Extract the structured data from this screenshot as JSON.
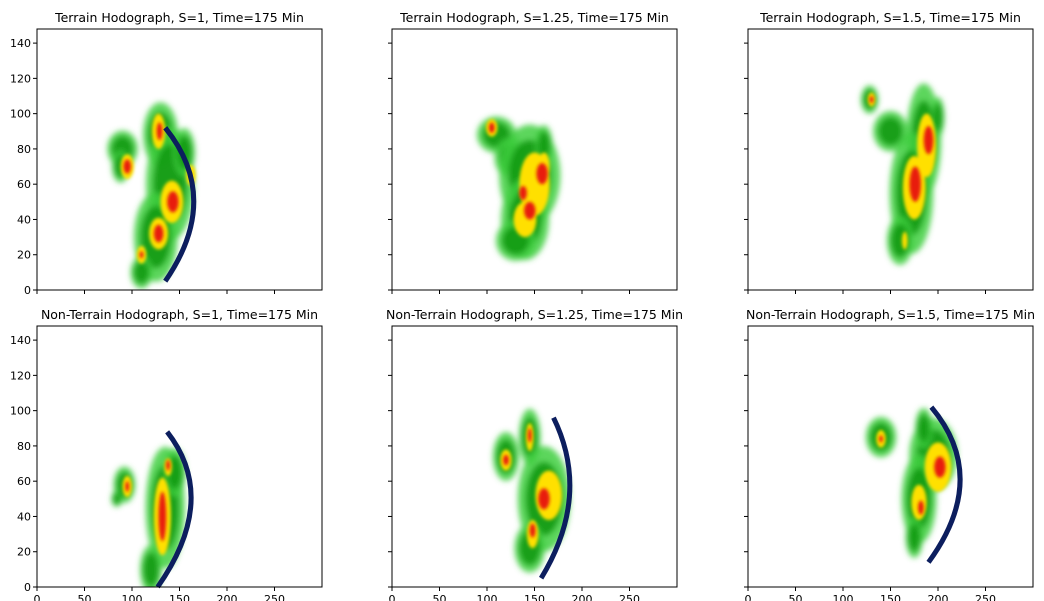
{
  "figure": {
    "shared_x_ticks": [
      "0",
      "50",
      "100",
      "150",
      "200",
      "250"
    ],
    "shared_y_ticks": [
      "0",
      "20",
      "40",
      "60",
      "80",
      "100",
      "120",
      "140"
    ]
  },
  "colors": {
    "reflectivity_light": "#3fcf3f",
    "reflectivity_mid": "#109a10",
    "reflectivity_high": "#ffe000",
    "reflectivity_core": "#e81c10",
    "outflow_arc": "#0c1e5e"
  },
  "chart_data": [
    {
      "type": "heatmap",
      "title": "Terrain Hodograph, S=1, Time=175 Min",
      "xlim": [
        0,
        300
      ],
      "ylim": [
        0,
        148
      ],
      "xticks": [
        0,
        50,
        100,
        150,
        200,
        250
      ],
      "yticks": [
        0,
        20,
        40,
        60,
        80,
        100,
        120,
        140
      ],
      "show_x_ticklabels": false,
      "show_y_ticklabels": true,
      "cells": [
        {
          "x": 90,
          "y": 80,
          "rx": 14,
          "ry": 9,
          "level": 1
        },
        {
          "x": 88,
          "y": 70,
          "rx": 8,
          "ry": 8,
          "level": 1
        },
        {
          "x": 130,
          "y": 88,
          "rx": 16,
          "ry": 16,
          "level": 1
        },
        {
          "x": 140,
          "y": 60,
          "rx": 22,
          "ry": 28,
          "level": 1
        },
        {
          "x": 125,
          "y": 30,
          "rx": 20,
          "ry": 22,
          "level": 1
        },
        {
          "x": 110,
          "y": 10,
          "rx": 10,
          "ry": 8,
          "level": 1
        },
        {
          "x": 155,
          "y": 78,
          "rx": 10,
          "ry": 12,
          "level": 1
        },
        {
          "x": 95,
          "y": 70,
          "rx": 7,
          "ry": 7,
          "level": 2
        },
        {
          "x": 128,
          "y": 90,
          "rx": 7,
          "ry": 10,
          "level": 2
        },
        {
          "x": 142,
          "y": 50,
          "rx": 12,
          "ry": 12,
          "level": 2
        },
        {
          "x": 128,
          "y": 32,
          "rx": 10,
          "ry": 9,
          "level": 2
        },
        {
          "x": 110,
          "y": 20,
          "rx": 5,
          "ry": 5,
          "level": 2
        },
        {
          "x": 162,
          "y": 65,
          "rx": 5,
          "ry": 6,
          "level": 2
        },
        {
          "x": 95,
          "y": 70,
          "rx": 4,
          "ry": 4,
          "level": 3
        },
        {
          "x": 129,
          "y": 90,
          "rx": 3,
          "ry": 5,
          "level": 3
        },
        {
          "x": 143,
          "y": 50,
          "rx": 6,
          "ry": 6,
          "level": 3
        },
        {
          "x": 128,
          "y": 32,
          "rx": 5,
          "ry": 5,
          "level": 3
        },
        {
          "x": 110,
          "y": 20,
          "rx": 2,
          "ry": 2,
          "level": 3
        }
      ],
      "arc": {
        "start": [
          135,
          92
        ],
        "control": [
          195,
          52
        ],
        "end": [
          135,
          5
        ]
      }
    },
    {
      "type": "heatmap",
      "title": "Terrain Hodograph, S=1.25, Time=175 Min",
      "xlim": [
        0,
        300
      ],
      "ylim": [
        0,
        148
      ],
      "xticks": [
        0,
        50,
        100,
        150,
        200,
        250
      ],
      "yticks": [
        0,
        20,
        40,
        60,
        80,
        100,
        120,
        140
      ],
      "show_x_ticklabels": false,
      "show_y_ticklabels": false,
      "cells": [
        {
          "x": 110,
          "y": 88,
          "rx": 18,
          "ry": 9,
          "level": 1
        },
        {
          "x": 125,
          "y": 75,
          "rx": 15,
          "ry": 10,
          "level": 1
        },
        {
          "x": 145,
          "y": 65,
          "rx": 28,
          "ry": 25,
          "level": 1
        },
        {
          "x": 140,
          "y": 40,
          "rx": 22,
          "ry": 20,
          "level": 1
        },
        {
          "x": 130,
          "y": 28,
          "rx": 18,
          "ry": 10,
          "level": 1
        },
        {
          "x": 160,
          "y": 82,
          "rx": 8,
          "ry": 10,
          "level": 1
        },
        {
          "x": 105,
          "y": 92,
          "rx": 6,
          "ry": 5,
          "level": 2
        },
        {
          "x": 150,
          "y": 60,
          "rx": 16,
          "ry": 18,
          "level": 2
        },
        {
          "x": 140,
          "y": 40,
          "rx": 12,
          "ry": 10,
          "level": 2
        },
        {
          "x": 160,
          "y": 70,
          "rx": 6,
          "ry": 8,
          "level": 2
        },
        {
          "x": 105,
          "y": 92,
          "rx": 3,
          "ry": 3,
          "level": 3
        },
        {
          "x": 158,
          "y": 66,
          "rx": 6,
          "ry": 6,
          "level": 3
        },
        {
          "x": 145,
          "y": 45,
          "rx": 6,
          "ry": 5,
          "level": 3
        },
        {
          "x": 138,
          "y": 55,
          "rx": 4,
          "ry": 4,
          "level": 3
        }
      ]
    },
    {
      "type": "heatmap",
      "title": "Terrain Hodograph, S=1.5, Time=175 Min",
      "xlim": [
        0,
        300
      ],
      "ylim": [
        0,
        148
      ],
      "xticks": [
        0,
        50,
        100,
        150,
        200,
        250
      ],
      "yticks": [
        0,
        20,
        40,
        60,
        80,
        100,
        120,
        140
      ],
      "show_x_ticklabels": false,
      "show_y_ticklabels": false,
      "cells": [
        {
          "x": 128,
          "y": 108,
          "rx": 8,
          "ry": 7,
          "level": 1
        },
        {
          "x": 150,
          "y": 90,
          "rx": 16,
          "ry": 10,
          "level": 1
        },
        {
          "x": 185,
          "y": 85,
          "rx": 16,
          "ry": 28,
          "level": 1
        },
        {
          "x": 172,
          "y": 55,
          "rx": 20,
          "ry": 30,
          "level": 1
        },
        {
          "x": 160,
          "y": 28,
          "rx": 12,
          "ry": 12,
          "level": 1
        },
        {
          "x": 200,
          "y": 98,
          "rx": 6,
          "ry": 10,
          "level": 1
        },
        {
          "x": 130,
          "y": 108,
          "rx": 4,
          "ry": 4,
          "level": 2
        },
        {
          "x": 188,
          "y": 82,
          "rx": 10,
          "ry": 18,
          "level": 2
        },
        {
          "x": 175,
          "y": 58,
          "rx": 12,
          "ry": 18,
          "level": 2
        },
        {
          "x": 165,
          "y": 28,
          "rx": 3,
          "ry": 5,
          "level": 2
        },
        {
          "x": 130,
          "y": 108,
          "rx": 2,
          "ry": 2,
          "level": 3
        },
        {
          "x": 190,
          "y": 85,
          "rx": 5,
          "ry": 8,
          "level": 3
        },
        {
          "x": 176,
          "y": 60,
          "rx": 6,
          "ry": 10,
          "level": 3
        }
      ]
    },
    {
      "type": "heatmap",
      "title": "Non-Terrain Hodograph, S=1, Time=175 Min",
      "xlim": [
        0,
        300
      ],
      "ylim": [
        0,
        148
      ],
      "xticks": [
        0,
        50,
        100,
        150,
        200,
        250
      ],
      "yticks": [
        0,
        20,
        40,
        60,
        80,
        100,
        120,
        140
      ],
      "show_x_ticklabels": true,
      "show_y_ticklabels": true,
      "cells": [
        {
          "x": 92,
          "y": 58,
          "rx": 10,
          "ry": 9,
          "level": 1
        },
        {
          "x": 84,
          "y": 50,
          "rx": 5,
          "ry": 4,
          "level": 1
        },
        {
          "x": 135,
          "y": 45,
          "rx": 18,
          "ry": 30,
          "level": 1
        },
        {
          "x": 120,
          "y": 10,
          "rx": 10,
          "ry": 12,
          "level": 1
        },
        {
          "x": 145,
          "y": 65,
          "rx": 10,
          "ry": 12,
          "level": 1
        },
        {
          "x": 95,
          "y": 57,
          "rx": 5,
          "ry": 6,
          "level": 2
        },
        {
          "x": 132,
          "y": 40,
          "rx": 9,
          "ry": 22,
          "level": 2
        },
        {
          "x": 138,
          "y": 68,
          "rx": 4,
          "ry": 5,
          "level": 2
        },
        {
          "x": 95,
          "y": 57,
          "rx": 2,
          "ry": 3,
          "level": 3
        },
        {
          "x": 132,
          "y": 40,
          "rx": 4,
          "ry": 14,
          "level": 3
        },
        {
          "x": 138,
          "y": 69,
          "rx": 2,
          "ry": 3,
          "level": 3
        }
      ],
      "arc": {
        "start": [
          137,
          88
        ],
        "control": [
          192,
          50
        ],
        "end": [
          127,
          0
        ]
      }
    },
    {
      "type": "heatmap",
      "title": "Non-Terrain Hodograph, S=1.25, Time=175 Min",
      "xlim": [
        0,
        300
      ],
      "ylim": [
        0,
        148
      ],
      "xticks": [
        0,
        50,
        100,
        150,
        200,
        250
      ],
      "yticks": [
        0,
        20,
        40,
        60,
        80,
        100,
        120,
        140
      ],
      "show_x_ticklabels": true,
      "show_y_ticklabels": false,
      "cells": [
        {
          "x": 120,
          "y": 74,
          "rx": 12,
          "ry": 12,
          "level": 1
        },
        {
          "x": 145,
          "y": 85,
          "rx": 10,
          "ry": 14,
          "level": 1
        },
        {
          "x": 160,
          "y": 50,
          "rx": 24,
          "ry": 26,
          "level": 1
        },
        {
          "x": 145,
          "y": 22,
          "rx": 14,
          "ry": 12,
          "level": 1
        },
        {
          "x": 120,
          "y": 72,
          "rx": 6,
          "ry": 6,
          "level": 2
        },
        {
          "x": 145,
          "y": 85,
          "rx": 4,
          "ry": 8,
          "level": 2
        },
        {
          "x": 165,
          "y": 52,
          "rx": 14,
          "ry": 14,
          "level": 2
        },
        {
          "x": 148,
          "y": 30,
          "rx": 6,
          "ry": 8,
          "level": 2
        },
        {
          "x": 120,
          "y": 72,
          "rx": 3,
          "ry": 3,
          "level": 3
        },
        {
          "x": 145,
          "y": 86,
          "rx": 2,
          "ry": 4,
          "level": 3
        },
        {
          "x": 160,
          "y": 50,
          "rx": 6,
          "ry": 6,
          "level": 3
        },
        {
          "x": 148,
          "y": 32,
          "rx": 3,
          "ry": 4,
          "level": 3
        }
      ],
      "arc": {
        "start": [
          170,
          96
        ],
        "control": [
          210,
          52
        ],
        "end": [
          157,
          5
        ]
      }
    },
    {
      "type": "heatmap",
      "title": "Non-Terrain Hodograph, S=1.5, Time=175 Min",
      "xlim": [
        0,
        300
      ],
      "ylim": [
        0,
        148
      ],
      "xticks": [
        0,
        50,
        100,
        150,
        200,
        250
      ],
      "yticks": [
        0,
        20,
        40,
        60,
        80,
        100,
        120,
        140
      ],
      "show_x_ticklabels": true,
      "show_y_ticklabels": false,
      "cells": [
        {
          "x": 140,
          "y": 85,
          "rx": 14,
          "ry": 10,
          "level": 1
        },
        {
          "x": 195,
          "y": 75,
          "rx": 22,
          "ry": 18,
          "level": 1
        },
        {
          "x": 180,
          "y": 50,
          "rx": 16,
          "ry": 22,
          "level": 1
        },
        {
          "x": 175,
          "y": 28,
          "rx": 8,
          "ry": 10,
          "level": 1
        },
        {
          "x": 185,
          "y": 90,
          "rx": 8,
          "ry": 10,
          "level": 1
        },
        {
          "x": 140,
          "y": 84,
          "rx": 5,
          "ry": 5,
          "level": 2
        },
        {
          "x": 200,
          "y": 68,
          "rx": 14,
          "ry": 14,
          "level": 2
        },
        {
          "x": 180,
          "y": 48,
          "rx": 8,
          "ry": 10,
          "level": 2
        },
        {
          "x": 140,
          "y": 84,
          "rx": 2,
          "ry": 2,
          "level": 3
        },
        {
          "x": 202,
          "y": 68,
          "rx": 6,
          "ry": 6,
          "level": 3
        },
        {
          "x": 182,
          "y": 45,
          "rx": 3,
          "ry": 4,
          "level": 3
        }
      ],
      "arc": {
        "start": [
          193,
          102
        ],
        "control": [
          255,
          62
        ],
        "end": [
          190,
          14
        ]
      }
    }
  ]
}
